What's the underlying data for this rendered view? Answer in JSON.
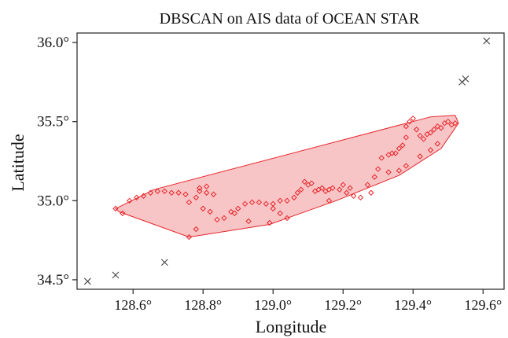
{
  "chart_data": {
    "type": "scatter",
    "title": "DBSCAN on AIS data of OCEAN STAR",
    "xlabel": "Longitude",
    "ylabel": "Latitude",
    "xlim": [
      128.44,
      129.66
    ],
    "ylim": [
      34.44,
      36.06
    ],
    "x_ticks": [
      {
        "value": 128.6,
        "label": "128.6°"
      },
      {
        "value": 128.8,
        "label": "128.8°"
      },
      {
        "value": 129.0,
        "label": "129.0°"
      },
      {
        "value": 129.2,
        "label": "129.2°"
      },
      {
        "value": 129.4,
        "label": "129.4°"
      },
      {
        "value": 129.6,
        "label": "129.6°"
      }
    ],
    "y_ticks": [
      {
        "value": 34.5,
        "label": "34.5°"
      },
      {
        "value": 35.0,
        "label": "35.0°"
      },
      {
        "value": 35.5,
        "label": "35.5°"
      },
      {
        "value": 36.0,
        "label": "36.0°"
      }
    ],
    "grid": false,
    "legend": "none",
    "colors": {
      "cluster_point": "#e8262c",
      "hull_fill": "#f5b6b8",
      "hull_stroke": "#e8262c",
      "noise": "#444444"
    },
    "cluster_hull": [
      [
        128.55,
        34.95
      ],
      [
        128.66,
        35.07
      ],
      [
        129.45,
        35.53
      ],
      [
        129.52,
        35.54
      ],
      [
        129.53,
        35.49
      ],
      [
        129.48,
        35.33
      ],
      [
        129.36,
        35.16
      ],
      [
        129.18,
        35.0
      ],
      [
        128.99,
        34.85
      ],
      [
        128.76,
        34.77
      ],
      [
        128.56,
        34.93
      ]
    ],
    "cluster_points": [
      [
        128.55,
        34.95
      ],
      [
        128.57,
        34.92
      ],
      [
        128.59,
        35.0
      ],
      [
        128.61,
        35.02
      ],
      [
        128.63,
        35.03
      ],
      [
        128.65,
        35.05
      ],
      [
        128.67,
        35.06
      ],
      [
        128.69,
        35.06
      ],
      [
        128.71,
        35.05
      ],
      [
        128.73,
        35.05
      ],
      [
        128.75,
        35.04
      ],
      [
        128.76,
        34.77
      ],
      [
        128.78,
        34.82
      ],
      [
        128.76,
        34.99
      ],
      [
        128.78,
        35.02
      ],
      [
        128.79,
        35.06
      ],
      [
        128.79,
        35.08
      ],
      [
        128.81,
        35.09
      ],
      [
        128.81,
        35.05
      ],
      [
        128.83,
        35.04
      ],
      [
        128.8,
        34.95
      ],
      [
        128.82,
        34.93
      ],
      [
        128.84,
        34.88
      ],
      [
        128.86,
        34.89
      ],
      [
        128.88,
        34.93
      ],
      [
        128.9,
        34.95
      ],
      [
        128.92,
        34.98
      ],
      [
        128.94,
        34.99
      ],
      [
        128.96,
        34.99
      ],
      [
        128.98,
        34.98
      ],
      [
        129.0,
        34.95
      ],
      [
        129.02,
        34.92
      ],
      [
        128.99,
        34.86
      ],
      [
        129.04,
        34.89
      ],
      [
        129.0,
        34.98
      ],
      [
        129.02,
        35.0
      ],
      [
        129.04,
        35.0
      ],
      [
        129.06,
        35.02
      ],
      [
        129.07,
        35.05
      ],
      [
        129.08,
        35.07
      ],
      [
        129.09,
        35.12
      ],
      [
        129.1,
        35.1
      ],
      [
        129.11,
        35.11
      ],
      [
        129.12,
        35.06
      ],
      [
        129.13,
        35.07
      ],
      [
        129.14,
        35.08
      ],
      [
        129.15,
        35.06
      ],
      [
        129.16,
        35.07
      ],
      [
        129.17,
        35.08
      ],
      [
        129.19,
        35.07
      ],
      [
        129.2,
        35.1
      ],
      [
        129.21,
        35.05
      ],
      [
        129.22,
        35.08
      ],
      [
        129.16,
        35.0
      ],
      [
        129.23,
        35.03
      ],
      [
        129.25,
        35.02
      ],
      [
        129.27,
        35.1
      ],
      [
        129.29,
        35.15
      ],
      [
        129.3,
        35.2
      ],
      [
        129.31,
        35.27
      ],
      [
        129.33,
        35.29
      ],
      [
        129.34,
        35.3
      ],
      [
        129.35,
        35.3
      ],
      [
        129.36,
        35.33
      ],
      [
        129.37,
        35.35
      ],
      [
        129.38,
        35.4
      ],
      [
        129.38,
        35.47
      ],
      [
        129.39,
        35.5
      ],
      [
        129.4,
        35.52
      ],
      [
        129.41,
        35.45
      ],
      [
        129.42,
        35.41
      ],
      [
        129.43,
        35.39
      ],
      [
        129.44,
        35.42
      ],
      [
        129.45,
        35.43
      ],
      [
        129.46,
        35.45
      ],
      [
        129.47,
        35.47
      ],
      [
        129.48,
        35.46
      ],
      [
        129.49,
        35.49
      ],
      [
        129.5,
        35.5
      ],
      [
        129.51,
        35.48
      ],
      [
        129.52,
        35.49
      ],
      [
        129.47,
        35.36
      ],
      [
        129.45,
        35.32
      ],
      [
        129.42,
        35.28
      ],
      [
        129.38,
        35.22
      ],
      [
        129.36,
        35.19
      ],
      [
        129.33,
        35.18
      ],
      [
        129.28,
        35.05
      ],
      [
        128.89,
        34.92
      ],
      [
        128.93,
        34.87
      ]
    ],
    "noise_points": [
      [
        128.47,
        34.49
      ],
      [
        128.55,
        34.53
      ],
      [
        128.69,
        34.61
      ],
      [
        129.54,
        35.75
      ],
      [
        129.55,
        35.77
      ],
      [
        129.61,
        36.01
      ]
    ]
  }
}
